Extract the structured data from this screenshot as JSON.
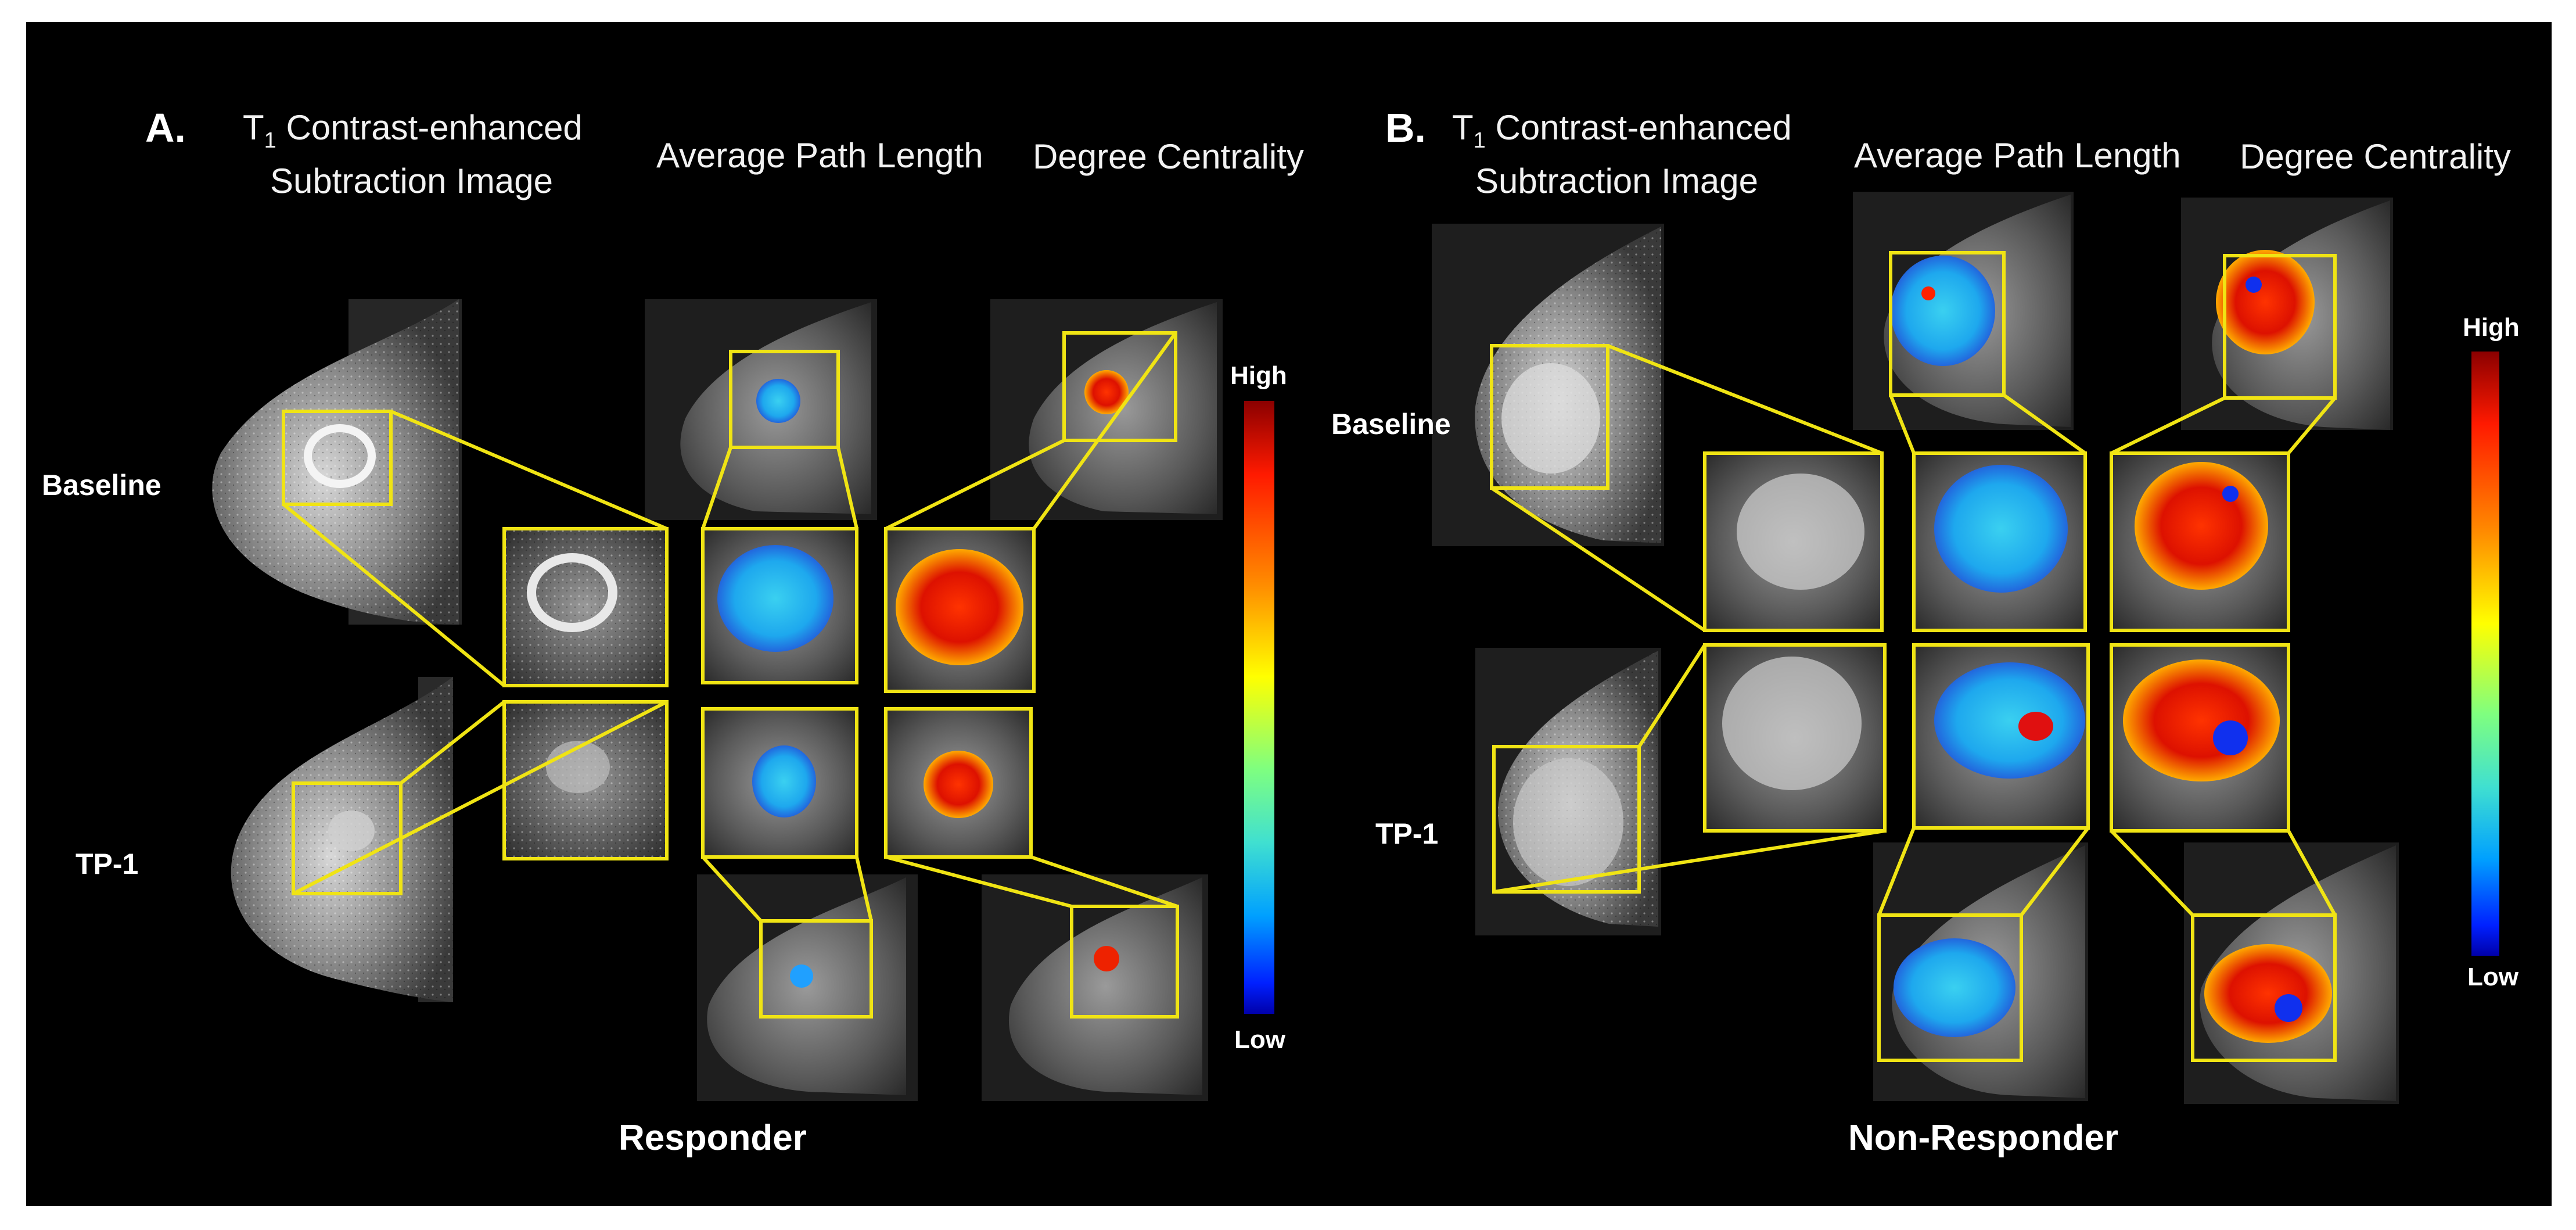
{
  "panels": {
    "a": {
      "label": "A.",
      "col1_header_sym": "T",
      "col1_header_sub": "1",
      "col1_header_line1": "Contrast-enhanced",
      "col1_header_line2": "Subtraction Image",
      "col2_header": "Average Path Length",
      "col3_header": "Degree Centrality",
      "row1_label": "Baseline",
      "row2_label": "TP-1",
      "group_label": "Responder",
      "colorbar_high": "High",
      "colorbar_low": "Low"
    },
    "b": {
      "label": "B.",
      "col1_header_sym": "T",
      "col1_header_sub": "1",
      "col1_header_line1": "Contrast-enhanced",
      "col1_header_line2": "Subtraction Image",
      "col2_header": "Average Path Length",
      "col3_header": "Degree Centrality",
      "row1_label": "Baseline",
      "row2_label": "TP-1",
      "group_label": "Non-Responder",
      "colorbar_high": "High",
      "colorbar_low": "Low"
    }
  },
  "colors": {
    "background": "#000000",
    "highlight_box": "#f0e414",
    "text": "#ffffff",
    "colorbar": [
      "#8b0000",
      "#ff1a00",
      "#ff8c00",
      "#ffff00",
      "#40e0d0",
      "#00bfff",
      "#0030ff",
      "#0000aa"
    ]
  }
}
